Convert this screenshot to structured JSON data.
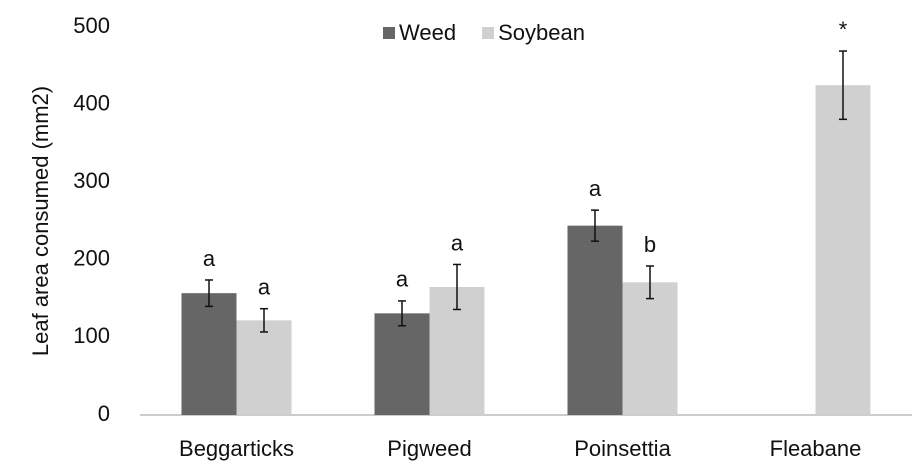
{
  "chart_data": {
    "type": "bar",
    "y_label": "Leaf area consumed (mm2)",
    "categories": [
      "Beggarticks",
      "Pigweed",
      "Poinsettia",
      "Fleabane"
    ],
    "series": [
      {
        "name": "Weed",
        "color": "#666666",
        "values": [
          157,
          131,
          244,
          null
        ],
        "errors": [
          17,
          16,
          20,
          null
        ],
        "annotations": [
          "a",
          "a",
          "a",
          null
        ]
      },
      {
        "name": "Soybean",
        "color": "#d0d0d0",
        "values": [
          122,
          165,
          171,
          425
        ],
        "errors": [
          15,
          29,
          21,
          44
        ],
        "annotations": [
          "a",
          "a",
          "b",
          "*"
        ]
      }
    ],
    "ylim": [
      0,
      500
    ],
    "yticks": [
      0,
      100,
      200,
      300,
      400,
      500
    ],
    "grid": false,
    "legend": "top"
  }
}
